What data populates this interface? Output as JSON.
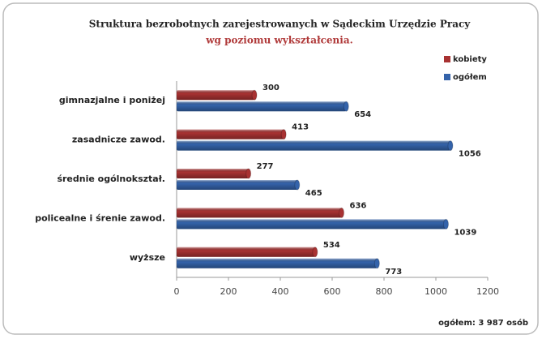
{
  "chart_data": {
    "type": "bar",
    "orientation": "horizontal",
    "title": "Struktura bezrobotnych zarejestrowanych w Sądeckim Urzędzie Pracy",
    "subtitle": "wg  poziomu wykształcenia.",
    "categories": [
      "gimnazjalne i poniżej",
      "zasadnicze zawod.",
      "średnie ogólnokształ.",
      "policealne i śrenie zawod.",
      "wyższe"
    ],
    "series": [
      {
        "name": "kobiety",
        "color": "#a83232",
        "values": [
          300,
          413,
          277,
          636,
          534
        ]
      },
      {
        "name": "ogółem",
        "color": "#3463aa",
        "values": [
          654,
          1056,
          465,
          1039,
          773
        ]
      }
    ],
    "xlim": [
      0,
      1200
    ],
    "xticks": [
      0,
      200,
      400,
      600,
      800,
      1000,
      1200
    ],
    "legend": "top-right",
    "annotation": "ogółem: 3 987 osób"
  }
}
